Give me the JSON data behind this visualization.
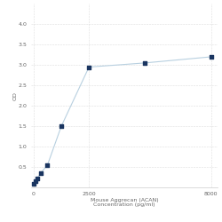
{
  "x": [
    0,
    78,
    156,
    313,
    625,
    1250,
    2500,
    5000,
    8000
  ],
  "y": [
    0.1,
    0.15,
    0.22,
    0.35,
    0.55,
    1.5,
    2.95,
    3.05,
    3.2
  ],
  "line_color": "#b8d0e0",
  "marker_color": "#1a3560",
  "marker_size": 9,
  "xlabel_line1": "Mouse Aggrecan (ACAN)",
  "xlabel_line2": "Concentration (pg/ml)",
  "ylabel": "OD",
  "xlim": [
    -100,
    8300
  ],
  "ylim": [
    0,
    4.5
  ],
  "yticks": [
    0.5,
    1.0,
    1.5,
    2.0,
    2.5,
    3.0,
    3.5,
    4.0
  ],
  "xticks": [
    0,
    2500,
    8000
  ],
  "xtick_labels": [
    "0",
    "2500",
    "8000"
  ],
  "grid_color": "#dddddd",
  "background_color": "#ffffff",
  "label_fontsize": 4.5,
  "tick_fontsize": 4.5
}
